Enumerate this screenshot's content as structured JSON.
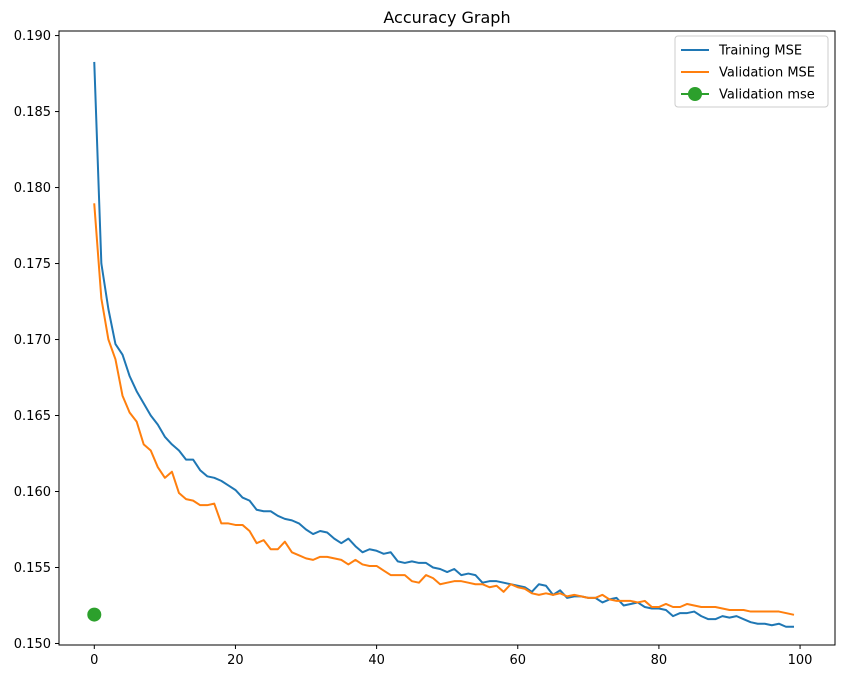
{
  "chart_data": {
    "type": "line",
    "title": "Accuracy Graph",
    "xlabel": "",
    "ylabel": "",
    "xlim": [
      -5,
      104.95
    ],
    "ylim": [
      0.1499,
      0.1903
    ],
    "grid": false,
    "legend_position": "top-right",
    "x_ticks": [
      0,
      20,
      40,
      60,
      80,
      100
    ],
    "x_tick_labels": [
      "0",
      "20",
      "40",
      "60",
      "80",
      "100"
    ],
    "y_ticks": [
      0.15,
      0.155,
      0.16,
      0.165,
      0.17,
      0.175,
      0.18,
      0.185,
      0.19
    ],
    "y_tick_labels": [
      "0.150",
      "0.155",
      "0.160",
      "0.165",
      "0.170",
      "0.175",
      "0.180",
      "0.185",
      "0.190"
    ],
    "series": [
      {
        "name": "Training MSE",
        "color": "#1f77b4",
        "style": "line",
        "x": [
          0,
          1,
          2,
          3,
          4,
          5,
          6,
          7,
          8,
          9,
          10,
          11,
          12,
          13,
          14,
          15,
          16,
          17,
          18,
          19,
          20,
          21,
          22,
          23,
          24,
          25,
          26,
          27,
          28,
          29,
          30,
          31,
          32,
          33,
          34,
          35,
          36,
          37,
          38,
          39,
          40,
          41,
          42,
          43,
          44,
          45,
          46,
          47,
          48,
          49,
          50,
          51,
          52,
          53,
          54,
          55,
          56,
          57,
          58,
          59,
          60,
          61,
          62,
          63,
          64,
          65,
          66,
          67,
          68,
          69,
          70,
          71,
          72,
          73,
          74,
          75,
          76,
          77,
          78,
          79,
          80,
          81,
          82,
          83,
          84,
          85,
          86,
          87,
          88,
          89,
          90,
          91,
          92,
          93,
          94,
          95,
          96,
          97,
          98,
          99
        ],
        "values": [
          0.1882,
          0.175,
          0.172,
          0.1697,
          0.169,
          0.1676,
          0.1666,
          0.1658,
          0.165,
          0.1644,
          0.1636,
          0.1631,
          0.1627,
          0.1621,
          0.1621,
          0.1614,
          0.161,
          0.1609,
          0.1607,
          0.1604,
          0.1601,
          0.1596,
          0.1594,
          0.1588,
          0.1587,
          0.1587,
          0.1584,
          0.1582,
          0.1581,
          0.1579,
          0.1575,
          0.1572,
          0.1574,
          0.1573,
          0.1569,
          0.1566,
          0.1569,
          0.1564,
          0.156,
          0.1562,
          0.1561,
          0.1559,
          0.156,
          0.1554,
          0.1553,
          0.1554,
          0.1553,
          0.1553,
          0.155,
          0.1549,
          0.1547,
          0.1549,
          0.1545,
          0.1546,
          0.1545,
          0.154,
          0.1541,
          0.1541,
          0.154,
          0.1539,
          0.1538,
          0.1537,
          0.1534,
          0.1539,
          0.1538,
          0.1532,
          0.1535,
          0.153,
          0.1531,
          0.1531,
          0.153,
          0.153,
          0.1527,
          0.1529,
          0.153,
          0.1525,
          0.1526,
          0.1527,
          0.1524,
          0.1523,
          0.1523,
          0.1522,
          0.1518,
          0.152,
          0.152,
          0.1521,
          0.1518,
          0.1516,
          0.1516,
          0.1518,
          0.1517,
          0.1518,
          0.1516,
          0.1514,
          0.1513,
          0.1513,
          0.1512,
          0.1513,
          0.1511,
          0.1511
        ]
      },
      {
        "name": "Validation MSE",
        "color": "#ff7f0e",
        "style": "line",
        "x": [
          0,
          1,
          2,
          3,
          4,
          5,
          6,
          7,
          8,
          9,
          10,
          11,
          12,
          13,
          14,
          15,
          16,
          17,
          18,
          19,
          20,
          21,
          22,
          23,
          24,
          25,
          26,
          27,
          28,
          29,
          30,
          31,
          32,
          33,
          34,
          35,
          36,
          37,
          38,
          39,
          40,
          41,
          42,
          43,
          44,
          45,
          46,
          47,
          48,
          49,
          50,
          51,
          52,
          53,
          54,
          55,
          56,
          57,
          58,
          59,
          60,
          61,
          62,
          63,
          64,
          65,
          66,
          67,
          68,
          69,
          70,
          71,
          72,
          73,
          74,
          75,
          76,
          77,
          78,
          79,
          80,
          81,
          82,
          83,
          84,
          85,
          86,
          87,
          88,
          89,
          90,
          91,
          92,
          93,
          94,
          95,
          96,
          97,
          98,
          99
        ],
        "values": [
          0.1789,
          0.1727,
          0.17,
          0.1687,
          0.1663,
          0.1652,
          0.1646,
          0.1631,
          0.1627,
          0.1616,
          0.1609,
          0.1613,
          0.1599,
          0.1595,
          0.1594,
          0.1591,
          0.1591,
          0.1592,
          0.1579,
          0.1579,
          0.1578,
          0.1578,
          0.1574,
          0.1566,
          0.1568,
          0.1562,
          0.1562,
          0.1567,
          0.156,
          0.1558,
          0.1556,
          0.1555,
          0.1557,
          0.1557,
          0.1556,
          0.1555,
          0.1552,
          0.1555,
          0.1552,
          0.1551,
          0.1551,
          0.1548,
          0.1545,
          0.1545,
          0.1545,
          0.1541,
          0.154,
          0.1545,
          0.1543,
          0.1539,
          0.154,
          0.1541,
          0.1541,
          0.154,
          0.1539,
          0.1539,
          0.1537,
          0.1538,
          0.1534,
          0.1539,
          0.1537,
          0.1536,
          0.1533,
          0.1532,
          0.1533,
          0.1532,
          0.1533,
          0.1531,
          0.1532,
          0.1531,
          0.153,
          0.153,
          0.1532,
          0.1529,
          0.1528,
          0.1528,
          0.1528,
          0.1527,
          0.1528,
          0.1524,
          0.1524,
          0.1526,
          0.1524,
          0.1524,
          0.1526,
          0.1525,
          0.1524,
          0.1524,
          0.1524,
          0.1523,
          0.1522,
          0.1522,
          0.1522,
          0.1521,
          0.1521,
          0.1521,
          0.1521,
          0.1521,
          0.152,
          0.1519
        ]
      },
      {
        "name": "Validation mse",
        "color": "#2ca02c",
        "style": "marker",
        "x": [
          0
        ],
        "values": [
          0.1519
        ]
      }
    ]
  }
}
